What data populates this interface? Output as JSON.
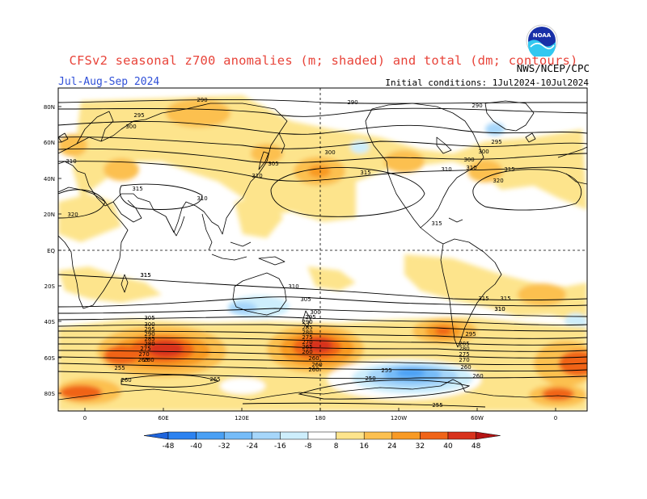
{
  "title": "CFSv2 seasonal z700 anomalies (m; shaded) and total (dm; contours)",
  "season": "Jul-Aug-Sep 2024",
  "initial_conditions": "Initial conditions: 1Jul2024-10Jul2024",
  "agency": "NWS/NCEP/CPC",
  "logo_text": "NOAA",
  "lat_labels": [
    "80N",
    "60N",
    "40N",
    "20N",
    "EQ",
    "20S",
    "40S",
    "60S",
    "80S"
  ],
  "lon_labels": [
    "0",
    "60E",
    "120E",
    "180",
    "120W",
    "60W",
    "0"
  ],
  "legend": {
    "ticks": [
      "-48",
      "-40",
      "-32",
      "-24",
      "-16",
      "-8",
      "8",
      "16",
      "24",
      "32",
      "40",
      "48"
    ],
    "colors": [
      "#1e64dc",
      "#2c82f0",
      "#4aa0f4",
      "#76bcf8",
      "#a6d6fa",
      "#cdeefc",
      "#ffffff",
      "#fde48c",
      "#fcc050",
      "#f89a24",
      "#f06418",
      "#d8321c",
      "#b41414"
    ]
  },
  "contour_labels": [
    {
      "text": "290"
    },
    {
      "text": "290"
    },
    {
      "text": "290"
    },
    {
      "text": "295"
    },
    {
      "text": "300"
    },
    {
      "text": "305"
    },
    {
      "text": "310"
    },
    {
      "text": "315"
    },
    {
      "text": "320"
    },
    {
      "text": "310"
    },
    {
      "text": "310"
    },
    {
      "text": "315"
    },
    {
      "text": "300"
    },
    {
      "text": "315"
    },
    {
      "text": "310"
    },
    {
      "text": "300"
    },
    {
      "text": "295"
    },
    {
      "text": "300"
    },
    {
      "text": "310"
    },
    {
      "text": "315"
    },
    {
      "text": "320"
    },
    {
      "text": "315"
    },
    {
      "text": "315"
    },
    {
      "text": "310"
    },
    {
      "text": "305"
    },
    {
      "text": "310"
    },
    {
      "text": "300"
    },
    {
      "text": "295"
    },
    {
      "text": "290"
    },
    {
      "text": "285"
    },
    {
      "text": "280"
    },
    {
      "text": "275"
    },
    {
      "text": "270"
    },
    {
      "text": "265"
    },
    {
      "text": "260"
    },
    {
      "text": "255"
    },
    {
      "text": "260"
    },
    {
      "text": "265"
    },
    {
      "text": "295"
    },
    {
      "text": "285"
    },
    {
      "text": "280"
    },
    {
      "text": "275"
    },
    {
      "text": "270"
    },
    {
      "text": "260"
    },
    {
      "text": "250"
    },
    {
      "text": "255"
    },
    {
      "text": "255"
    },
    {
      "text": "305"
    },
    {
      "text": "300"
    },
    {
      "text": "295"
    },
    {
      "text": "290"
    },
    {
      "text": "285"
    },
    {
      "text": "280"
    },
    {
      "text": "275"
    },
    {
      "text": "270"
    },
    {
      "text": "265"
    },
    {
      "text": "260"
    },
    {
      "text": "315"
    },
    {
      "text": "310"
    },
    {
      "text": "260"
    },
    {
      "text": "260"
    },
    {
      "text": "260"
    },
    {
      "text": "260"
    },
    {
      "text": "315"
    }
  ]
}
